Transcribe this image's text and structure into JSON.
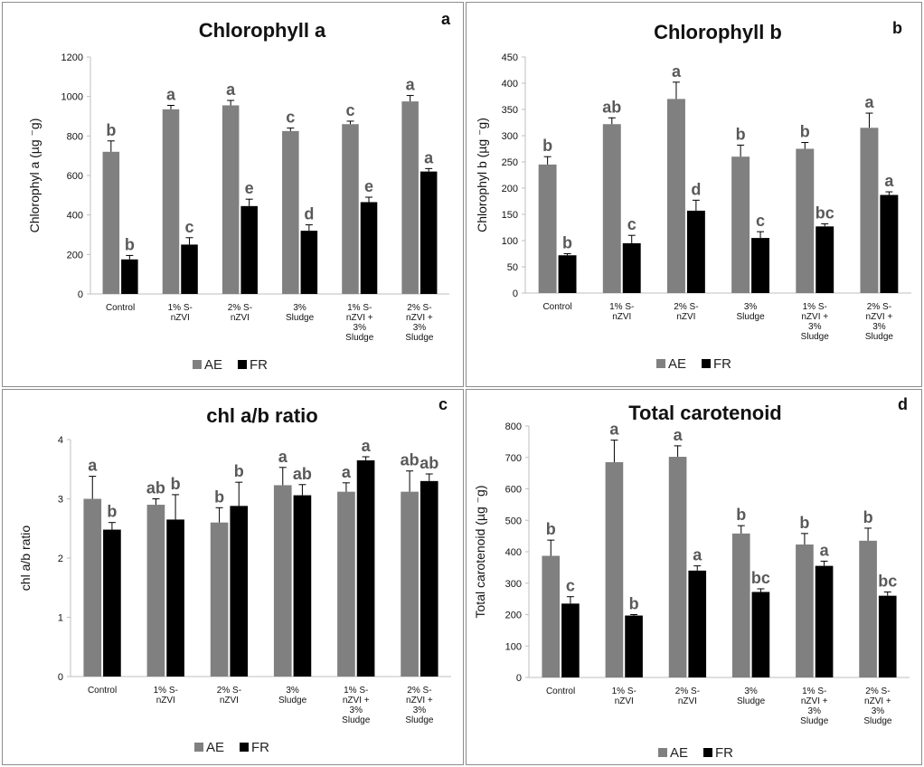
{
  "chart_data": [
    {
      "id": "a",
      "type": "bar",
      "panel_label": "a",
      "title": "Chlorophyll a",
      "ylabel": "Chlorophyl a (µg ⁻g)",
      "ylim": [
        0,
        1200
      ],
      "yticks": [
        0,
        200,
        400,
        600,
        800,
        1000,
        1200
      ],
      "categories": [
        "Control",
        "1% S-\nnZVI",
        "2% S-\nnZVI",
        "3%\nSludge",
        "1% S-\nnZVI +\n3%\nSludge",
        "2% S-\nnZVI +\n3%\nSludge"
      ],
      "series": [
        {
          "name": "AE",
          "color": "#808080",
          "values": [
            720,
            935,
            955,
            825,
            860,
            975
          ],
          "errors": [
            55,
            20,
            25,
            15,
            15,
            30
          ],
          "letters": [
            "b",
            "a",
            "a",
            "c",
            "c",
            "a"
          ]
        },
        {
          "name": "FR",
          "color": "#000000",
          "values": [
            175,
            250,
            445,
            320,
            465,
            620
          ],
          "errors": [
            20,
            35,
            35,
            30,
            25,
            15
          ],
          "letters": [
            "b",
            "c",
            "e",
            "d",
            "e",
            "a"
          ]
        }
      ],
      "legend_position": "bottom"
    },
    {
      "id": "b",
      "type": "bar",
      "panel_label": "b",
      "title": "Chlorophyll b",
      "ylabel": "Chlorophyl b (µg ⁻g)",
      "ylim": [
        0,
        450
      ],
      "yticks": [
        0,
        50,
        100,
        150,
        200,
        250,
        300,
        350,
        400,
        450
      ],
      "categories": [
        "Control",
        "1% S-\nnZVI",
        "2% S-\nnZVI",
        "3%\nSludge",
        "1% S-\nnZVI +\n3%\nSludge",
        "2% S-\nnZVI +\n3%\nSludge"
      ],
      "series": [
        {
          "name": "AE",
          "color": "#808080",
          "values": [
            245,
            322,
            370,
            260,
            275,
            315
          ],
          "errors": [
            15,
            12,
            32,
            22,
            12,
            28
          ],
          "letters": [
            "b",
            "ab",
            "a",
            "b",
            "b",
            "a"
          ]
        },
        {
          "name": "FR",
          "color": "#000000",
          "values": [
            72,
            95,
            157,
            105,
            127,
            187
          ],
          "errors": [
            3,
            15,
            20,
            12,
            5,
            6
          ],
          "letters": [
            "b",
            "c",
            "d",
            "c",
            "bc",
            "a"
          ]
        }
      ],
      "legend_position": "bottom"
    },
    {
      "id": "c",
      "type": "bar",
      "panel_label": "c",
      "title": "chl a/b ratio",
      "ylabel": "chl a/b ratio",
      "ylim": [
        0,
        4
      ],
      "yticks": [
        0,
        1,
        2,
        3,
        4
      ],
      "categories": [
        "Control",
        "1% S-\nnZVI",
        "2% S-\nnZVI",
        "3%\nSludge",
        "1% S-\nnZVI +\n3%\nSludge",
        "2% S-\nnZVI +\n3%\nSludge"
      ],
      "series": [
        {
          "name": "AE",
          "color": "#808080",
          "values": [
            3.0,
            2.9,
            2.6,
            3.23,
            3.12,
            3.12
          ],
          "errors": [
            0.38,
            0.1,
            0.25,
            0.3,
            0.15,
            0.35
          ],
          "letters": [
            "a",
            "ab",
            "b",
            "a",
            "a",
            "ab"
          ]
        },
        {
          "name": "FR",
          "color": "#000000",
          "values": [
            2.48,
            2.65,
            2.88,
            3.06,
            3.65,
            3.3
          ],
          "errors": [
            0.12,
            0.42,
            0.4,
            0.18,
            0.06,
            0.12
          ],
          "letters": [
            "b",
            "b",
            "b",
            "ab",
            "a",
            "ab"
          ]
        }
      ],
      "legend_position": "bottom"
    },
    {
      "id": "d",
      "type": "bar",
      "panel_label": "d",
      "title": "Total carotenoid",
      "ylabel": "Total carotenoid (µg ⁻g)",
      "ylim": [
        0,
        800
      ],
      "yticks": [
        0,
        100,
        200,
        300,
        400,
        500,
        600,
        700,
        800
      ],
      "categories": [
        "Control",
        "1% S-\nnZVI",
        "2% S-\nnZVI",
        "3%\nSludge",
        "1% S-\nnZVI +\n3%\nSludge",
        "2% S-\nnZVI +\n3%\nSludge"
      ],
      "series": [
        {
          "name": "AE",
          "color": "#808080",
          "values": [
            387,
            685,
            702,
            458,
            423,
            435
          ],
          "errors": [
            50,
            70,
            35,
            25,
            35,
            40
          ],
          "letters": [
            "b",
            "a",
            "a",
            "b",
            "b",
            "b"
          ]
        },
        {
          "name": "FR",
          "color": "#000000",
          "values": [
            235,
            197,
            340,
            272,
            355,
            260
          ],
          "errors": [
            22,
            3,
            15,
            10,
            15,
            12
          ],
          "letters": [
            "c",
            "b",
            "a",
            "bc",
            "a",
            "bc"
          ]
        }
      ],
      "legend_position": "bottom"
    }
  ]
}
